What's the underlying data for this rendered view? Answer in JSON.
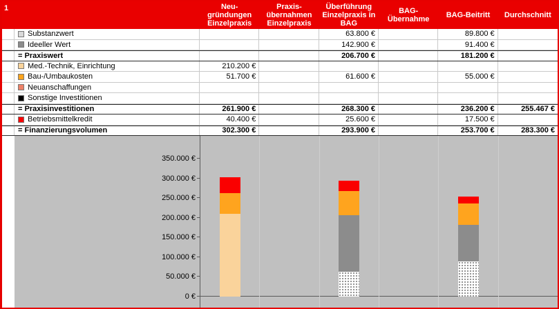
{
  "window": {
    "index_label": "1"
  },
  "header": {
    "columns": [
      {
        "label": "Neu-\ngründungen\nEinzelpraxis"
      },
      {
        "label": "Praxis-\nübernahmen\nEinzelpraxis"
      },
      {
        "label": "Überführung\nEinzelpraxis in\nBAG"
      },
      {
        "label": "BAG-\nÜbernahme"
      },
      {
        "label": "BAG-Beitritt"
      },
      {
        "label": "Durchschnitt"
      }
    ]
  },
  "colors": {
    "header_bg": "#E90000",
    "frame_red": "#E60000",
    "chart_bg": "#C0C0C0",
    "substanz": "#D9D9D9",
    "ideell": "#8C8C8C",
    "medtech": "#FAD39B",
    "bau": "#FFA41E",
    "neuanschaffung": "#EE8268",
    "sonstige": "#000000",
    "kredit": "#FA0000"
  },
  "rows": [
    {
      "label": "Substanzwert",
      "type": "item",
      "swatch": "substanz",
      "values": [
        "",
        "",
        "63.800 €",
        "",
        "89.800 €",
        ""
      ]
    },
    {
      "label": "Ideeller Wert",
      "type": "item",
      "swatch": "ideell",
      "values": [
        "",
        "",
        "142.900 €",
        "",
        "91.400 €",
        ""
      ]
    },
    {
      "label": "= Praxiswert",
      "type": "total",
      "swatch": null,
      "values": [
        "",
        "",
        "206.700 €",
        "",
        "181.200 €",
        ""
      ]
    },
    {
      "label": "Med.-Technik, Einrichtung",
      "type": "item",
      "swatch": "medtech",
      "values": [
        "210.200 €",
        "",
        "",
        "",
        "",
        ""
      ]
    },
    {
      "label": "Bau-/Umbaukosten",
      "type": "item",
      "swatch": "bau",
      "values": [
        "51.700 €",
        "",
        "61.600 €",
        "",
        "55.000 €",
        ""
      ]
    },
    {
      "label": "Neuanschaffungen",
      "type": "item",
      "swatch": "neuanschaffung",
      "values": [
        "",
        "",
        "",
        "",
        "",
        ""
      ]
    },
    {
      "label": "Sonstige Investitionen",
      "type": "item",
      "swatch": "sonstige",
      "values": [
        "",
        "",
        "",
        "",
        "",
        ""
      ]
    },
    {
      "label": "= Praxisinvestitionen",
      "type": "total",
      "swatch": null,
      "values": [
        "261.900 €",
        "",
        "268.300 €",
        "",
        "236.200 €",
        "255.467 €"
      ]
    },
    {
      "label": "Betriebsmittelkredit",
      "type": "item",
      "swatch": "kredit",
      "values": [
        "40.400 €",
        "",
        "25.600 €",
        "",
        "17.500 €",
        ""
      ]
    },
    {
      "label": "= Finanzierungsvolumen",
      "type": "total",
      "swatch": null,
      "values": [
        "302.300 €",
        "",
        "293.900 €",
        "",
        "253.700 €",
        "283.300 €"
      ]
    }
  ],
  "chart_data": {
    "type": "bar",
    "stacked": true,
    "title": "",
    "xlabel": "",
    "ylabel": "",
    "y_max": 350000,
    "tick_step": 50000,
    "y_ticks": [
      "0 €",
      "50.000 €",
      "100.000 €",
      "150.000 €",
      "200.000 €",
      "250.000 €",
      "300.000 €",
      "350.000 €"
    ],
    "grid": false,
    "legend_position": "table-left",
    "categories": [
      "Neugründungen Einzelpraxis",
      "Praxisübernahmen Einzelpraxis",
      "Überführung Einzelpraxis in BAG",
      "BAG-Übernahme",
      "BAG-Beitritt",
      "Durchschnitt"
    ],
    "series": [
      {
        "name": "Substanzwert",
        "color": "substanz",
        "pattern": "dotted",
        "values": [
          0,
          0,
          63800,
          0,
          89800,
          0
        ]
      },
      {
        "name": "Ideeller Wert",
        "color": "ideell",
        "values": [
          0,
          0,
          142900,
          0,
          91400,
          0
        ]
      },
      {
        "name": "Med.-Technik, Einrichtung",
        "color": "medtech",
        "values": [
          210200,
          0,
          0,
          0,
          0,
          0
        ]
      },
      {
        "name": "Bau-/Umbaukosten",
        "color": "bau",
        "values": [
          51700,
          0,
          61600,
          0,
          55000,
          0
        ]
      },
      {
        "name": "Neuanschaffungen",
        "color": "neuanschaffung",
        "values": [
          0,
          0,
          0,
          0,
          0,
          0
        ]
      },
      {
        "name": "Sonstige Investitionen",
        "color": "sonstige",
        "values": [
          0,
          0,
          0,
          0,
          0,
          0
        ]
      },
      {
        "name": "Betriebsmittelkredit",
        "color": "kredit",
        "values": [
          40400,
          0,
          25600,
          0,
          17500,
          0
        ]
      }
    ]
  }
}
